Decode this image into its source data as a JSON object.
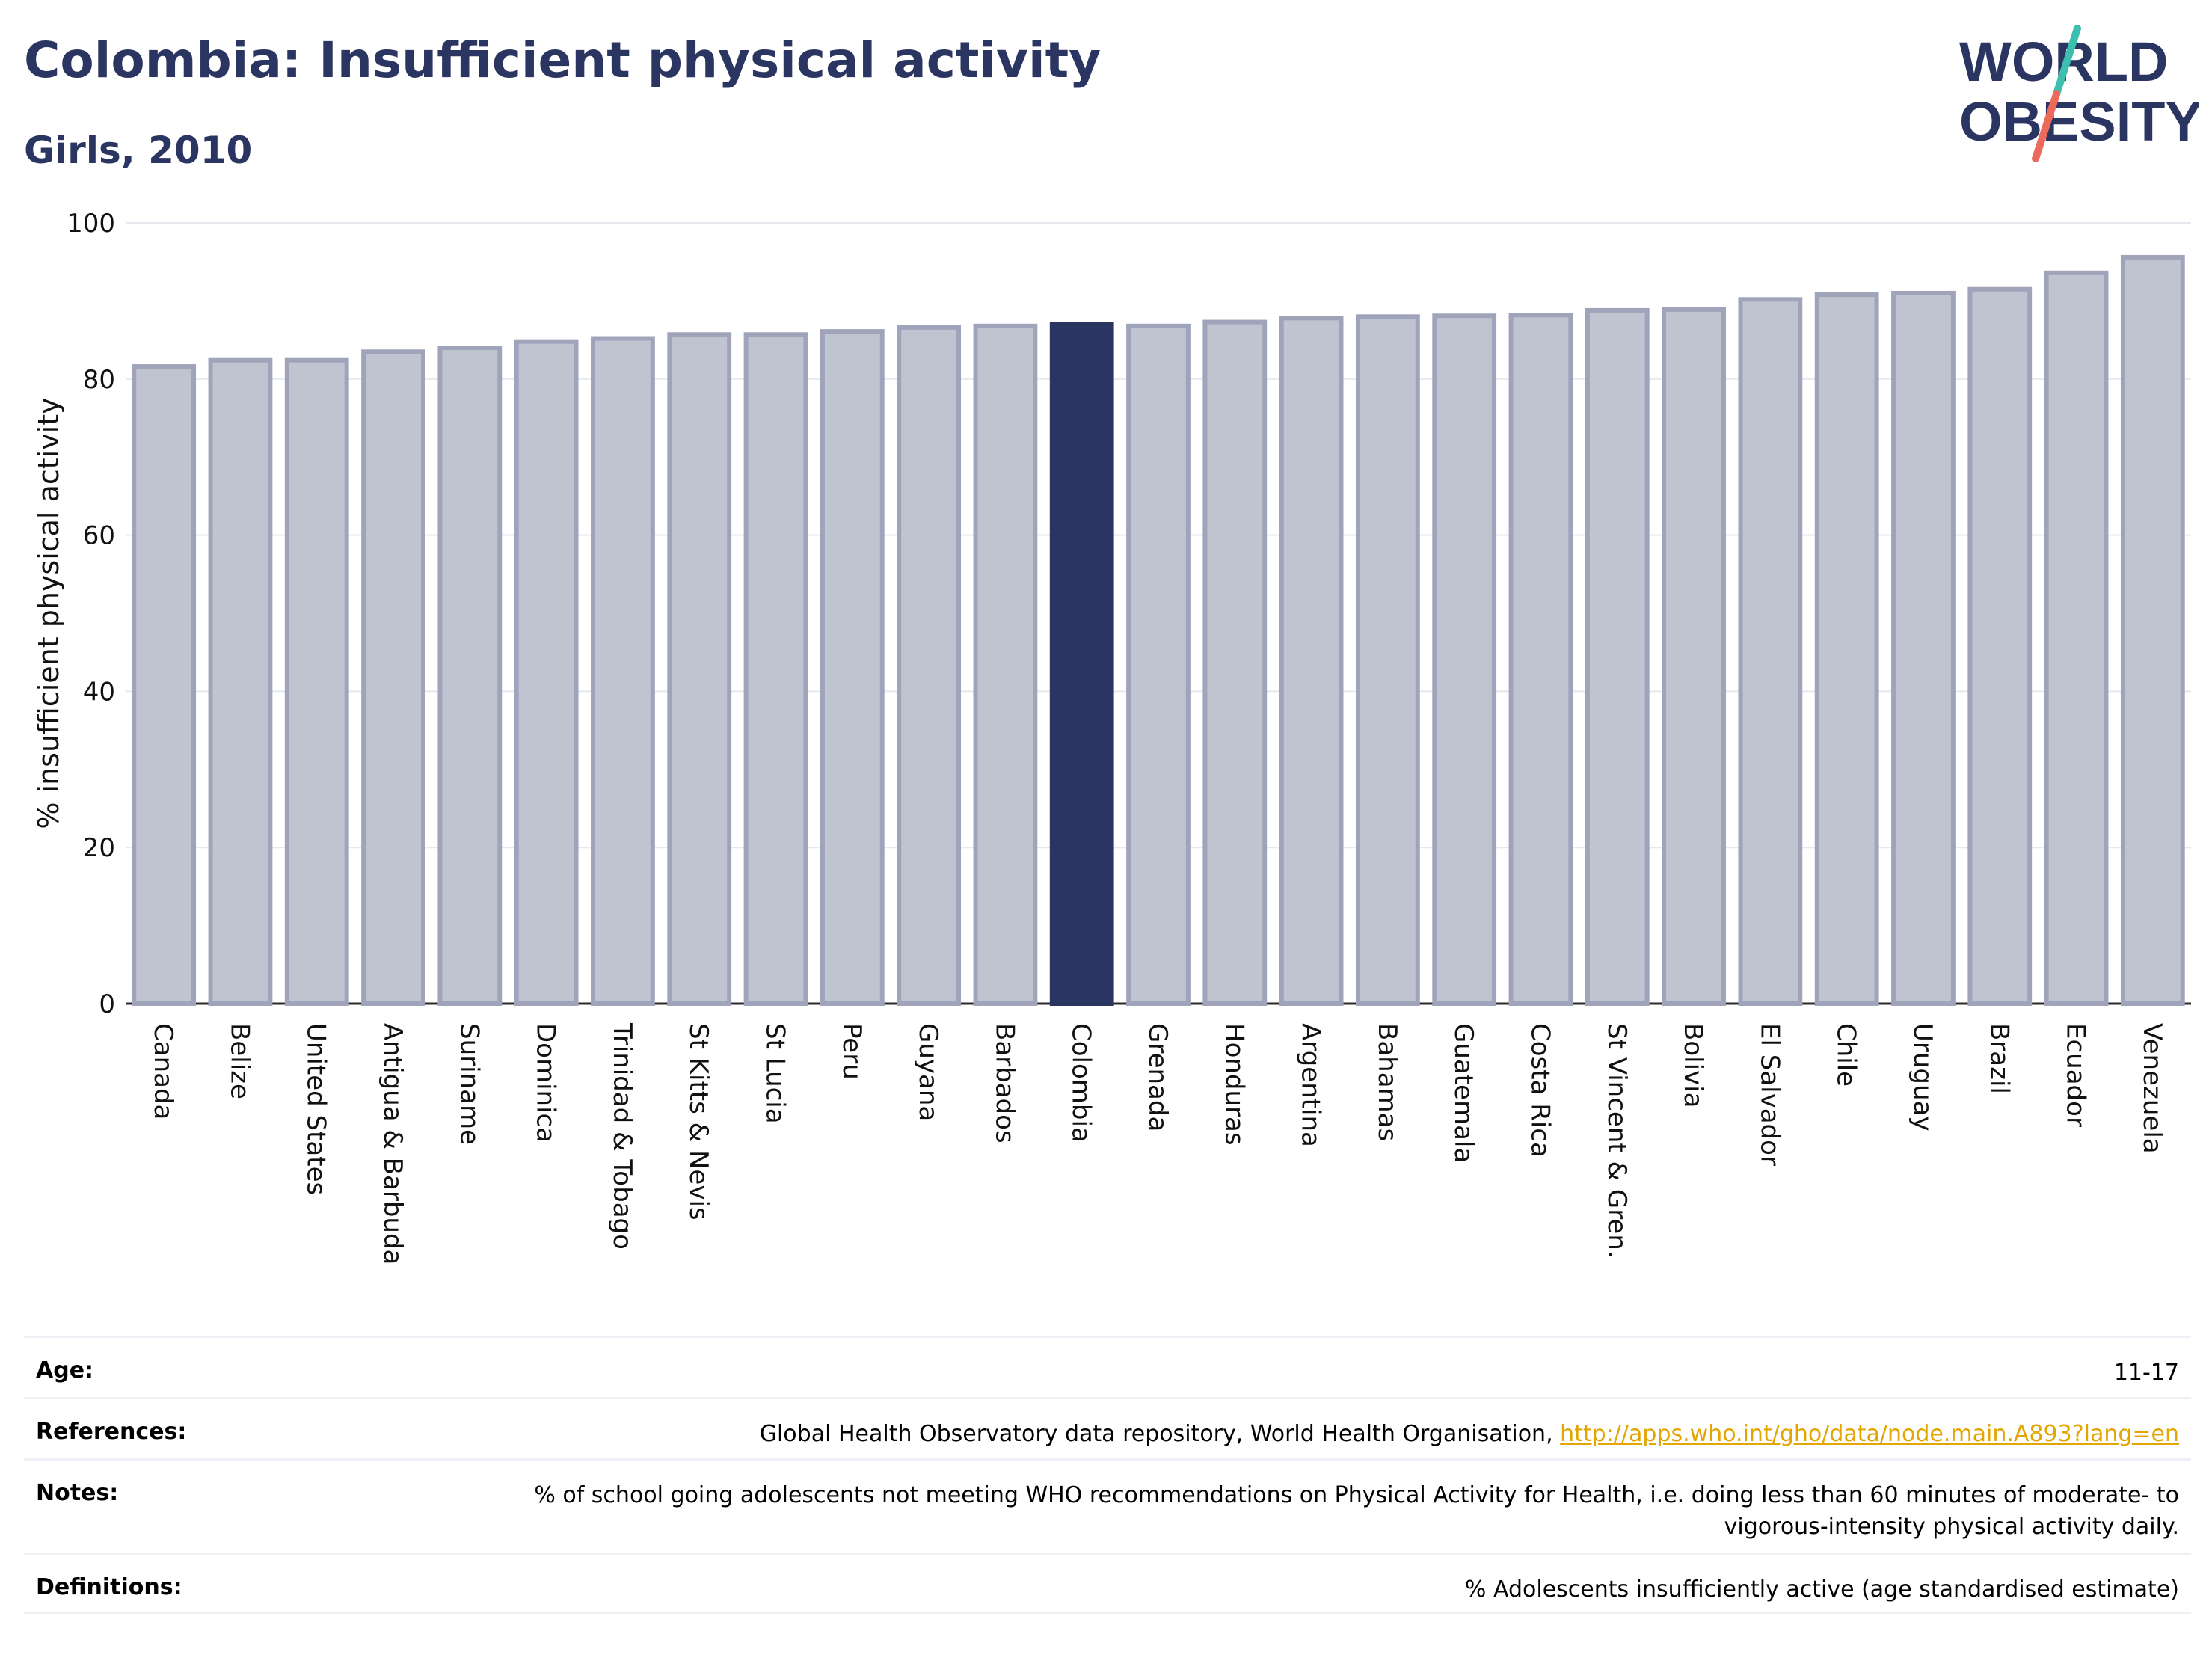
{
  "header": {
    "title": "Colombia: Insufficient physical activity",
    "subtitle": "Girls, 2010"
  },
  "logo": {
    "line1": "WORLD",
    "line2": "OBESITY",
    "text_color": "#2b3561",
    "slash_colors": [
      "#3cbfae",
      "#ec6a5c"
    ]
  },
  "chart_data": {
    "type": "bar",
    "title": "Colombia: Insufficient physical activity",
    "subtitle": "Girls, 2010",
    "xlabel": "",
    "ylabel": "% insufficient physical activity",
    "ylim": [
      0,
      100
    ],
    "yticks": [
      0,
      20,
      40,
      60,
      80,
      100
    ],
    "grid": true,
    "highlight": "Colombia",
    "colors": {
      "bar": "#c0c3d0",
      "bar_edge": "#9fa4bb",
      "highlight": "#2b3561"
    },
    "categories": [
      "Canada",
      "Belize",
      "United States",
      "Antigua & Barbuda",
      "Suriname",
      "Dominica",
      "Trinidad & Tobago",
      "St Kitts & Nevis",
      "St Lucia",
      "Peru",
      "Guyana",
      "Barbados",
      "Colombia",
      "Grenada",
      "Honduras",
      "Argentina",
      "Bahamas",
      "Guatemala",
      "Costa Rica",
      "St Vincent & Gren.",
      "Bolivia",
      "El Salvador",
      "Chile",
      "Uruguay",
      "Brazil",
      "Ecuador",
      "Venezuela"
    ],
    "values": [
      81.6,
      82.4,
      82.4,
      83.5,
      84.0,
      84.8,
      85.2,
      85.7,
      85.7,
      86.1,
      86.6,
      86.8,
      87.0,
      86.8,
      87.3,
      87.8,
      88.0,
      88.1,
      88.2,
      88.8,
      88.9,
      90.2,
      90.8,
      91.0,
      91.5,
      93.6,
      95.6
    ]
  },
  "info": [
    {
      "label": "Age:",
      "value": "11-17"
    },
    {
      "label": "References:",
      "value": "Global Health Observatory data repository, World Health Organisation, ",
      "link": "http://apps.who.int/gho/data/node.main.A893?lang=en"
    },
    {
      "label": "Notes:",
      "value": "% of school going adolescents not meeting WHO recommendations on Physical Activity for Health, i.e. doing less than 60 minutes of moderate- to vigorous-intensity physical activity daily."
    },
    {
      "label": "Definitions:",
      "value": "% Adolescents insufficiently active (age standardised estimate)"
    }
  ]
}
